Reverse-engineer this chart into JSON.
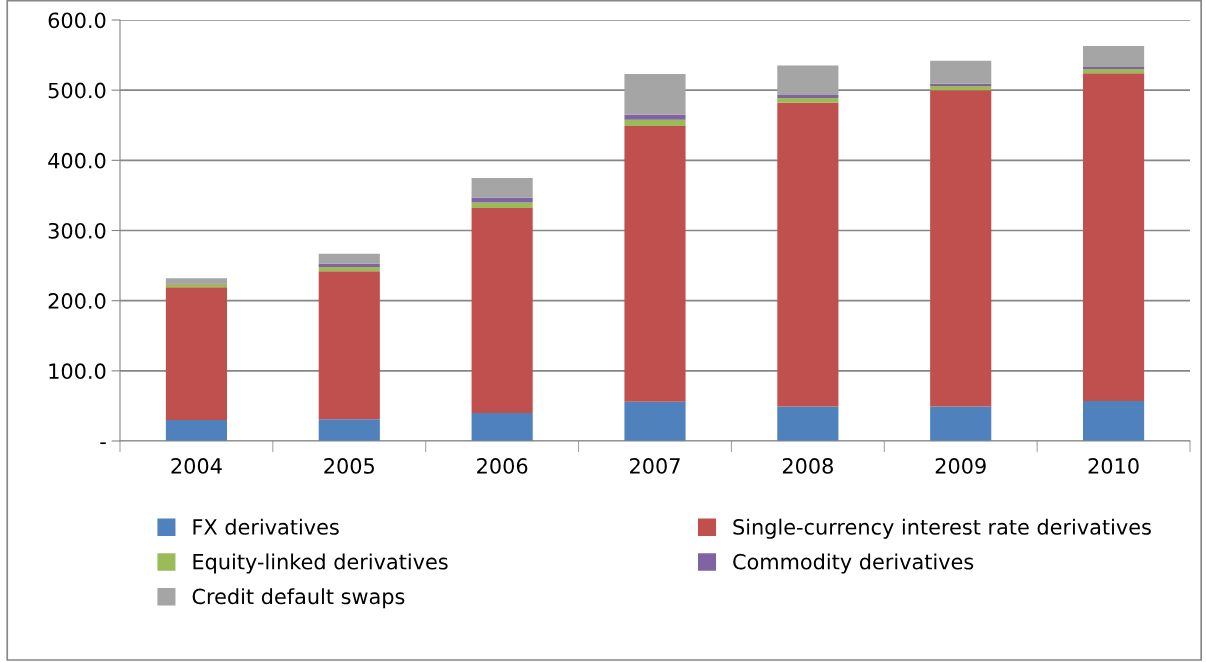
{
  "chart_data": {
    "type": "bar",
    "stacked": true,
    "categories": [
      "2004",
      "2005",
      "2006",
      "2007",
      "2008",
      "2009",
      "2010"
    ],
    "series": [
      {
        "name": "FX derivatives",
        "color": "#4f81bd",
        "values": [
          30,
          31,
          40,
          56,
          49,
          49,
          57
        ]
      },
      {
        "name": "Single-currency interest rate derivatives",
        "color": "#c0504d",
        "values": [
          189,
          211,
          292,
          393,
          433,
          451,
          467
        ]
      },
      {
        "name": "Equity-linked derivatives",
        "color": "#9bbb59",
        "values": [
          5,
          6,
          8,
          9,
          7,
          6,
          6
        ]
      },
      {
        "name": "Commodity derivatives",
        "color": "#8064a2",
        "values": [
          1,
          5,
          7,
          7,
          4,
          3,
          3
        ]
      },
      {
        "name": "Credit default swaps",
        "color": "#a5a5a5",
        "values": [
          7,
          14,
          28,
          58,
          42,
          33,
          30
        ]
      }
    ],
    "ylim": [
      0,
      600
    ],
    "yticks": [
      {
        "value": 0,
        "label": "-"
      },
      {
        "value": 100,
        "label": "100.0"
      },
      {
        "value": 200,
        "label": "200.0"
      },
      {
        "value": 300,
        "label": "300.0"
      },
      {
        "value": 400,
        "label": "400.0"
      },
      {
        "value": 500,
        "label": "500.0"
      },
      {
        "value": 600,
        "label": "600.0"
      }
    ],
    "grid": "y",
    "legend": "bottom"
  }
}
